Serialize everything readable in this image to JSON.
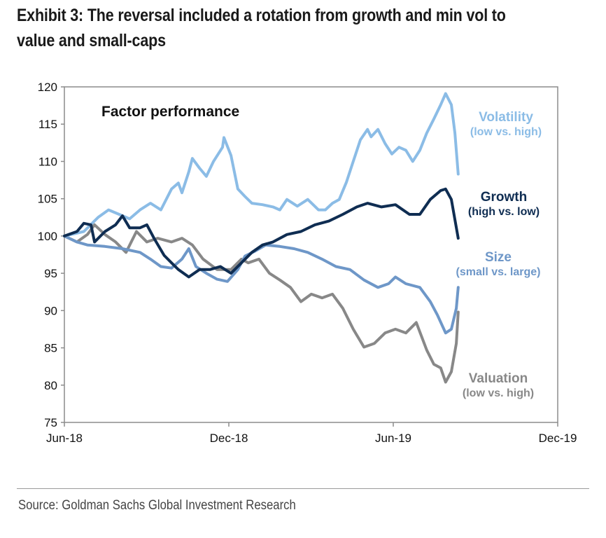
{
  "title": "Exhibit 3: The reversal included a rotation from growth and min vol to value and small-caps",
  "source": "Source: Goldman Sachs Global Investment Research",
  "chart_data": {
    "type": "line",
    "title": "Factor performance",
    "xlabel": "",
    "ylabel": "",
    "x_unit": "months since Jun-18",
    "xlim": [
      0,
      18
    ],
    "ylim": [
      75,
      120
    ],
    "yticks": [
      75,
      80,
      85,
      90,
      95,
      100,
      105,
      110,
      115,
      120
    ],
    "xticks": [
      {
        "pos": 0,
        "label": "Jun-18"
      },
      {
        "pos": 6,
        "label": "Dec-18"
      },
      {
        "pos": 12,
        "label": "Jun-19"
      },
      {
        "pos": 18,
        "label": "Dec-19"
      }
    ],
    "grid": false,
    "legend": "inline-right",
    "series": [
      {
        "name": "Volatility",
        "sublabel": "(low vs. high)",
        "color": "#8bbce6",
        "x": [
          0,
          0.71,
          1.23,
          1.61,
          2.0,
          2.38,
          2.76,
          3.14,
          3.52,
          3.91,
          4.16,
          4.29,
          4.54,
          4.67,
          4.93,
          5.18,
          5.44,
          5.77,
          5.82,
          6.08,
          6.33,
          6.59,
          6.84,
          7.23,
          7.61,
          7.86,
          8.12,
          8.5,
          8.88,
          9.27,
          9.52,
          9.78,
          10.03,
          10.29,
          10.54,
          10.8,
          11.06,
          11.19,
          11.44,
          11.7,
          11.95,
          12.21,
          12.46,
          12.71,
          12.97,
          13.22,
          13.48,
          13.73,
          13.91,
          14.12,
          14.25,
          14.37
        ],
        "values": [
          100,
          100.6,
          102.5,
          103.5,
          102.9,
          102.3,
          103.5,
          104.4,
          103.5,
          106.3,
          107.1,
          105.8,
          108.6,
          110.4,
          109.1,
          108,
          110,
          111.9,
          113.2,
          110.8,
          106.3,
          105.3,
          104.4,
          104.2,
          103.9,
          103.5,
          104.9,
          104,
          104.9,
          103.5,
          103.5,
          104.4,
          104.9,
          107.2,
          110,
          112.9,
          114.3,
          113.3,
          114.3,
          112.4,
          111,
          111.9,
          111.5,
          110,
          111.5,
          113.8,
          115.7,
          117.6,
          119.1,
          117.6,
          113.8,
          108.3
        ]
      },
      {
        "name": "Growth",
        "sublabel": "(high vs. low)",
        "color": "#0f2d52",
        "x": [
          0,
          0.46,
          0.71,
          0.97,
          1.1,
          1.48,
          1.87,
          2.12,
          2.38,
          2.76,
          3.01,
          3.27,
          3.64,
          3.91,
          4.16,
          4.54,
          4.93,
          5.31,
          5.69,
          6.08,
          6.46,
          6.84,
          7.23,
          7.61,
          8.12,
          8.63,
          9.14,
          9.65,
          10.16,
          10.67,
          11.06,
          11.57,
          12.08,
          12.59,
          12.97,
          13.35,
          13.73,
          13.91,
          14.12,
          14.37
        ],
        "values": [
          100,
          100.6,
          101.7,
          101.5,
          99.2,
          100.6,
          101.5,
          102.7,
          101.1,
          101.1,
          101.5,
          99.7,
          97.4,
          96.4,
          95.5,
          94.5,
          95.5,
          95.5,
          95.9,
          95,
          96.4,
          97.8,
          98.8,
          99.2,
          100.2,
          100.6,
          101.5,
          102,
          102.9,
          103.9,
          104.4,
          103.9,
          104.2,
          102.9,
          102.9,
          104.9,
          106.1,
          106.3,
          104.9,
          99.7
        ]
      },
      {
        "name": "Size",
        "sublabel": "(small vs. large)",
        "color": "#6e97c8",
        "x": [
          0,
          0.46,
          0.84,
          1.48,
          2.12,
          2.76,
          3.14,
          3.52,
          3.91,
          4.29,
          4.54,
          4.8,
          5.18,
          5.57,
          5.95,
          6.33,
          6.59,
          6.97,
          7.35,
          7.86,
          8.38,
          8.88,
          9.4,
          9.91,
          10.42,
          10.93,
          11.44,
          11.83,
          12.08,
          12.46,
          12.97,
          13.35,
          13.61,
          13.91,
          14.12,
          14.3,
          14.37
        ],
        "values": [
          100,
          99.2,
          98.8,
          98.6,
          98.3,
          97.8,
          96.9,
          95.9,
          95.7,
          96.9,
          98.3,
          95.9,
          95,
          94.2,
          93.9,
          95.5,
          97.3,
          98,
          98.8,
          98.6,
          98.3,
          97.8,
          96.9,
          95.9,
          95.5,
          94.1,
          93.1,
          93.6,
          94.5,
          93.6,
          93.1,
          91.2,
          89.4,
          87,
          87.5,
          90.3,
          93.1
        ]
      },
      {
        "name": "Valuation",
        "sublabel": "(low vs. high)",
        "color": "#888888",
        "x": [
          0,
          0.46,
          0.84,
          1.1,
          1.48,
          1.87,
          2.25,
          2.63,
          3.01,
          3.4,
          3.91,
          4.29,
          4.67,
          5.06,
          5.57,
          6.08,
          6.46,
          6.71,
          7.1,
          7.48,
          7.86,
          8.25,
          8.63,
          9.01,
          9.4,
          9.78,
          10.16,
          10.54,
          10.93,
          11.31,
          11.7,
          12.08,
          12.46,
          12.84,
          13.22,
          13.48,
          13.73,
          13.91,
          14.12,
          14.3,
          14.37
        ],
        "values": [
          100,
          99.2,
          100.2,
          101.5,
          100.2,
          99.2,
          97.8,
          100.6,
          99.2,
          99.7,
          99.2,
          99.7,
          98.8,
          96.9,
          95.5,
          95.5,
          96.9,
          96.4,
          96.9,
          95,
          94.1,
          93.1,
          91.2,
          92.2,
          91.7,
          92.2,
          90.3,
          87.5,
          85.1,
          85.6,
          87,
          87.5,
          87,
          88.4,
          84.7,
          82.8,
          82.3,
          80.4,
          81.8,
          85.6,
          89.8
        ]
      }
    ],
    "labels": [
      {
        "series": "Volatility",
        "name": "Volatility",
        "sub": "(low vs. high)"
      },
      {
        "series": "Growth",
        "name": "Growth",
        "sub": "(high vs. low)"
      },
      {
        "series": "Size",
        "name": "Size",
        "sub": "(small vs. large)"
      },
      {
        "series": "Valuation",
        "name": "Valuation",
        "sub": "(low vs. high)"
      }
    ]
  }
}
